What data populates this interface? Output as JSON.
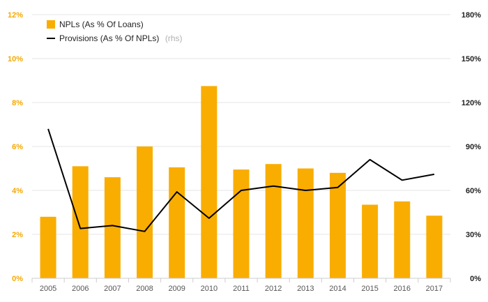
{
  "chart_data": {
    "type": "bar",
    "categories": [
      "2005",
      "2006",
      "2007",
      "2008",
      "2009",
      "2010",
      "2011",
      "2012",
      "2013",
      "2014",
      "2015",
      "2016",
      "2017"
    ],
    "series": [
      {
        "name": "NPLs (As % Of Loans)",
        "type": "bar",
        "axis": "left",
        "color": "#f9ad00",
        "values": [
          2.8,
          5.1,
          4.6,
          6.0,
          5.05,
          8.75,
          4.95,
          5.2,
          5.0,
          4.8,
          3.35,
          3.5,
          2.85
        ]
      },
      {
        "name": "Provisions (As % Of NPLs)",
        "name_suffix": "(rhs)",
        "type": "line",
        "axis": "right",
        "color": "#000000",
        "values": [
          102,
          34,
          36,
          32,
          59,
          41,
          60,
          63,
          60,
          62,
          81,
          67,
          71
        ]
      }
    ],
    "y_left": {
      "ylim": [
        0,
        12
      ],
      "ticks": [
        "0%",
        "2%",
        "4%",
        "6%",
        "8%",
        "10%",
        "12%"
      ],
      "color": "#f5a800"
    },
    "y_right": {
      "ylim": [
        0,
        180
      ],
      "ticks": [
        "0%",
        "30%",
        "60%",
        "90%",
        "120%",
        "150%",
        "180%"
      ],
      "color": "#222222"
    },
    "grid": true,
    "legend_position": "top-left"
  }
}
